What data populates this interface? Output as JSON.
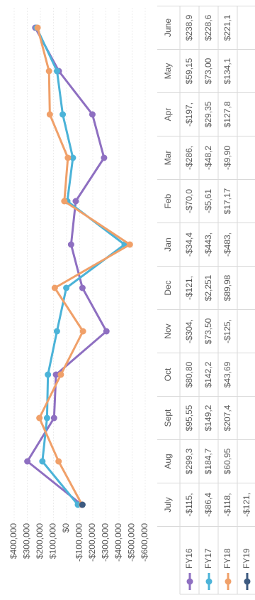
{
  "chart_data": {
    "type": "line",
    "categories": [
      "July",
      "Aug",
      "Sept",
      "Oct",
      "Nov",
      "Dec",
      "Jan",
      "Feb",
      "Mar",
      "Apr",
      "May",
      "June"
    ],
    "series": [
      {
        "name": "FY16",
        "color": "#8e6fc1",
        "values": [
          -115000,
          299300,
          95550,
          80800,
          -304000,
          -121000,
          -34400,
          -70000,
          -286000,
          -197000,
          59150,
          238900
        ],
        "value_labels": [
          "-$115,",
          "$299,3",
          "$95,55",
          "$80,80",
          "-$304,",
          "-$121,",
          "-$34,4",
          "-$70,0",
          "-$286,",
          "-$197,",
          "$59,15",
          "$238,9"
        ]
      },
      {
        "name": "FY17",
        "color": "#4bb3d8",
        "values": [
          -86400,
          184700,
          149200,
          142200,
          73500,
          2251,
          -443000,
          -5610,
          -48200,
          29350,
          73000,
          228600
        ],
        "value_labels": [
          "-$86,4",
          "$184,7",
          "$149,2",
          "$142,2",
          "$73,50",
          "$2,251",
          "-$443,",
          "-$5,61",
          "-$48,2",
          "$29,35",
          "$73,00",
          "$228,6"
        ]
      },
      {
        "name": "FY18",
        "color": "#f0a069",
        "values": [
          -118000,
          60950,
          207400,
          43690,
          -125000,
          89980,
          -483000,
          17170,
          -9900,
          127800,
          134100,
          221100
        ],
        "value_labels": [
          "-$118,",
          "$60,95",
          "$207,4",
          "$43,69",
          "-$125,",
          "$89,98",
          "-$483,",
          "$17,17",
          "-$9,90",
          "$127,8",
          "$134,1",
          "$221,1"
        ]
      },
      {
        "name": "FY19",
        "color": "#3d5a80",
        "values": [
          -121000,
          null,
          null,
          null,
          null,
          null,
          null,
          null,
          null,
          null,
          null,
          null
        ],
        "value_labels": [
          "-$121,",
          null,
          null,
          null,
          null,
          null,
          null,
          null,
          null,
          null,
          null,
          null
        ]
      }
    ],
    "ylim": [
      -600000,
      400000
    ],
    "yticks": [
      {
        "value": -600000,
        "label": "-$600,000"
      },
      {
        "value": -500000,
        "label": "-$500,000"
      },
      {
        "value": -400000,
        "label": "-$400,000"
      },
      {
        "value": -300000,
        "label": "-$300,000"
      },
      {
        "value": -200000,
        "label": "-$200,000"
      },
      {
        "value": -100000,
        "label": "-$100,000"
      },
      {
        "value": 0,
        "label": "$0"
      },
      {
        "value": 100000,
        "label": "$100,000"
      },
      {
        "value": 200000,
        "label": "$200,000"
      },
      {
        "value": 300000,
        "label": "$300,000"
      },
      {
        "value": 400000,
        "label": "$400,000"
      }
    ],
    "grid": true
  }
}
